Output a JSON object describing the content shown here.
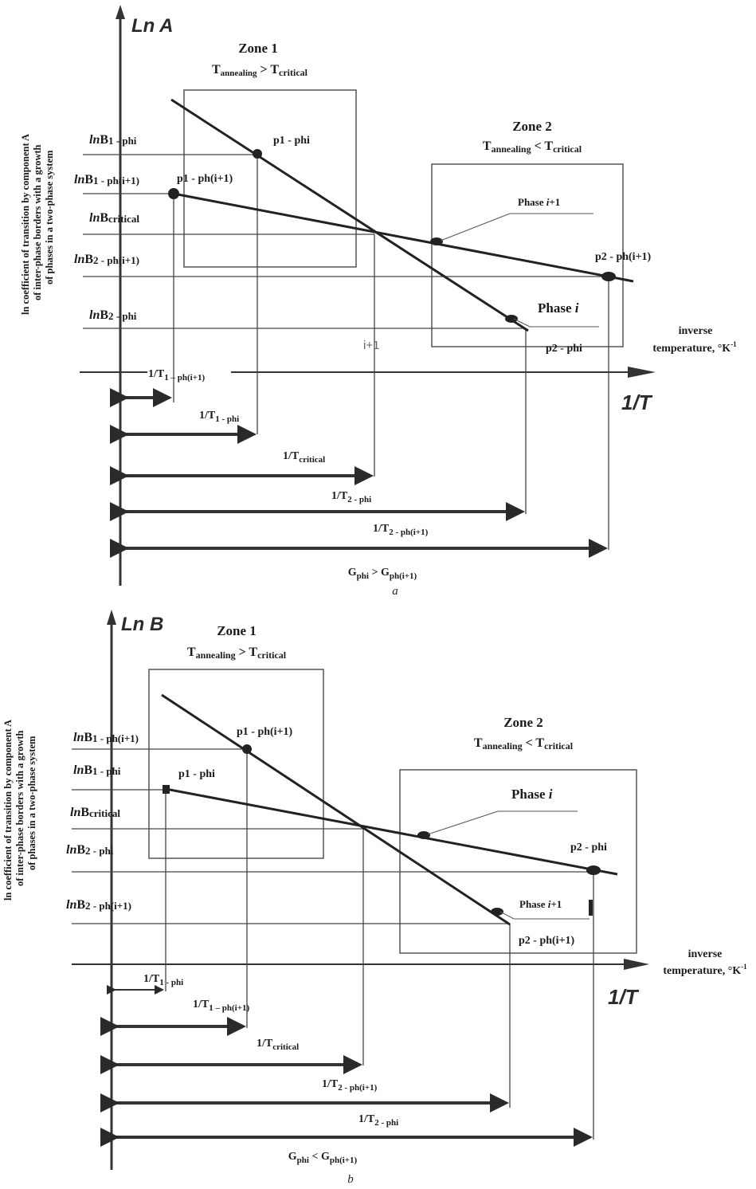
{
  "panel_a": {
    "y_axis_title": "Ln A",
    "x_axis_title": "1/T",
    "x_axis_desc_1": "inverse",
    "x_axis_desc_2": "temperature, °K",
    "x_axis_desc_sup": "-1",
    "ylabel_1": "ln coefficient of transition by component A",
    "ylabel_2": "of inter-phase borders with a growth",
    "ylabel_3": "of phases in a two-phase system",
    "zone1": {
      "title": "Zone 1",
      "t": "T",
      "t_sub": "annealing",
      "op": " > ",
      "t2": "T",
      "t2_sub": "critical"
    },
    "zone2": {
      "title": "Zone 2",
      "t": "T",
      "t_sub": "annealing",
      "op": " < ",
      "t2": "T",
      "t2_sub": "critical"
    },
    "levels": [
      {
        "ln": "ln",
        "b": "B",
        "sub": "1 - phi"
      },
      {
        "ln": "ln",
        "b": "B",
        "sub": "1 - ph(i+1)"
      },
      {
        "ln": "ln",
        "b": "B",
        "sub": "critical"
      },
      {
        "ln": "ln",
        "b": "B",
        "sub": "2 - ph(i+1)"
      },
      {
        "ln": "ln",
        "b": "B",
        "sub": "2 - phi"
      }
    ],
    "points": [
      "p1 - phi",
      "p1 - ph(i+1)",
      "p2 - ph(i+1)",
      "p2 - phi"
    ],
    "phase_upper": {
      "pre": "Phase ",
      "i": "i",
      "post": "+1"
    },
    "phase_lower": {
      "pre": "Phase ",
      "i": "i",
      "post": ""
    },
    "crossing_label": "i+1",
    "distances": [
      {
        "main": "1/T",
        "sub": "1 – ph(i+1)"
      },
      {
        "main": "1/T",
        "sub": "1 - phi"
      },
      {
        "main": "1/T",
        "sub": "critical"
      },
      {
        "main": "1/T",
        "sub": "2 - phi"
      },
      {
        "main": "1/T",
        "sub": "2 - ph(i+1)"
      }
    ],
    "relation": {
      "g1": "G",
      "s1": "phi",
      "op": " > ",
      "g2": "G",
      "s2": "ph(i+1)"
    },
    "caption": "a"
  },
  "panel_b": {
    "y_axis_title": "Ln B",
    "x_axis_title": "1/T",
    "x_axis_desc_1": "inverse",
    "x_axis_desc_2": "temperature, °K",
    "x_axis_desc_sup": "-1",
    "ylabel_1": "ln coefficient of transition by component A",
    "ylabel_2": "of inter-phase borders with a growth",
    "ylabel_3": "of phases in a two-phase system",
    "zone1": {
      "title": "Zone 1",
      "t": "T",
      "t_sub": "annealing",
      "op": " > ",
      "t2": "T",
      "t2_sub": "critical"
    },
    "zone2": {
      "title": "Zone 2",
      "t": "T",
      "t_sub": "annealing",
      "op": " < ",
      "t2": "T",
      "t2_sub": "critical"
    },
    "levels": [
      {
        "ln": "ln",
        "b": "B",
        "sub": "1 - ph(i+1)"
      },
      {
        "ln": "ln",
        "b": "B",
        "sub": "1 - phi"
      },
      {
        "ln": "ln",
        "b": "B",
        "sub": "critical"
      },
      {
        "ln": "ln",
        "b": "B",
        "sub": "2 - phi"
      },
      {
        "ln": "ln",
        "b": "B",
        "sub": "2 - ph(i+1)"
      }
    ],
    "points": [
      "p1 - ph(i+1)",
      "p1 - phi",
      "p2 - phi",
      "p2 - ph(i+1)"
    ],
    "phase_upper": {
      "pre": "Phase ",
      "i": "i",
      "post": ""
    },
    "phase_lower": {
      "pre": "Phase ",
      "i": "i",
      "post": "+1"
    },
    "distances": [
      {
        "main": "1/T",
        "sub": "1 - phi"
      },
      {
        "main": "1/T",
        "sub": "1 – ph(i+1)"
      },
      {
        "main": "1/T",
        "sub": "critical"
      },
      {
        "main": "1/T",
        "sub": "2 - ph(i+1)"
      },
      {
        "main": "1/T",
        "sub": "2 - phi"
      }
    ],
    "relation": {
      "g1": "G",
      "s1": "phi",
      "op": " < ",
      "g2": "G",
      "s2": "ph(i+1)"
    },
    "caption": "b"
  },
  "colors": {
    "ink": "#1f1f1f",
    "box": "#555555"
  }
}
